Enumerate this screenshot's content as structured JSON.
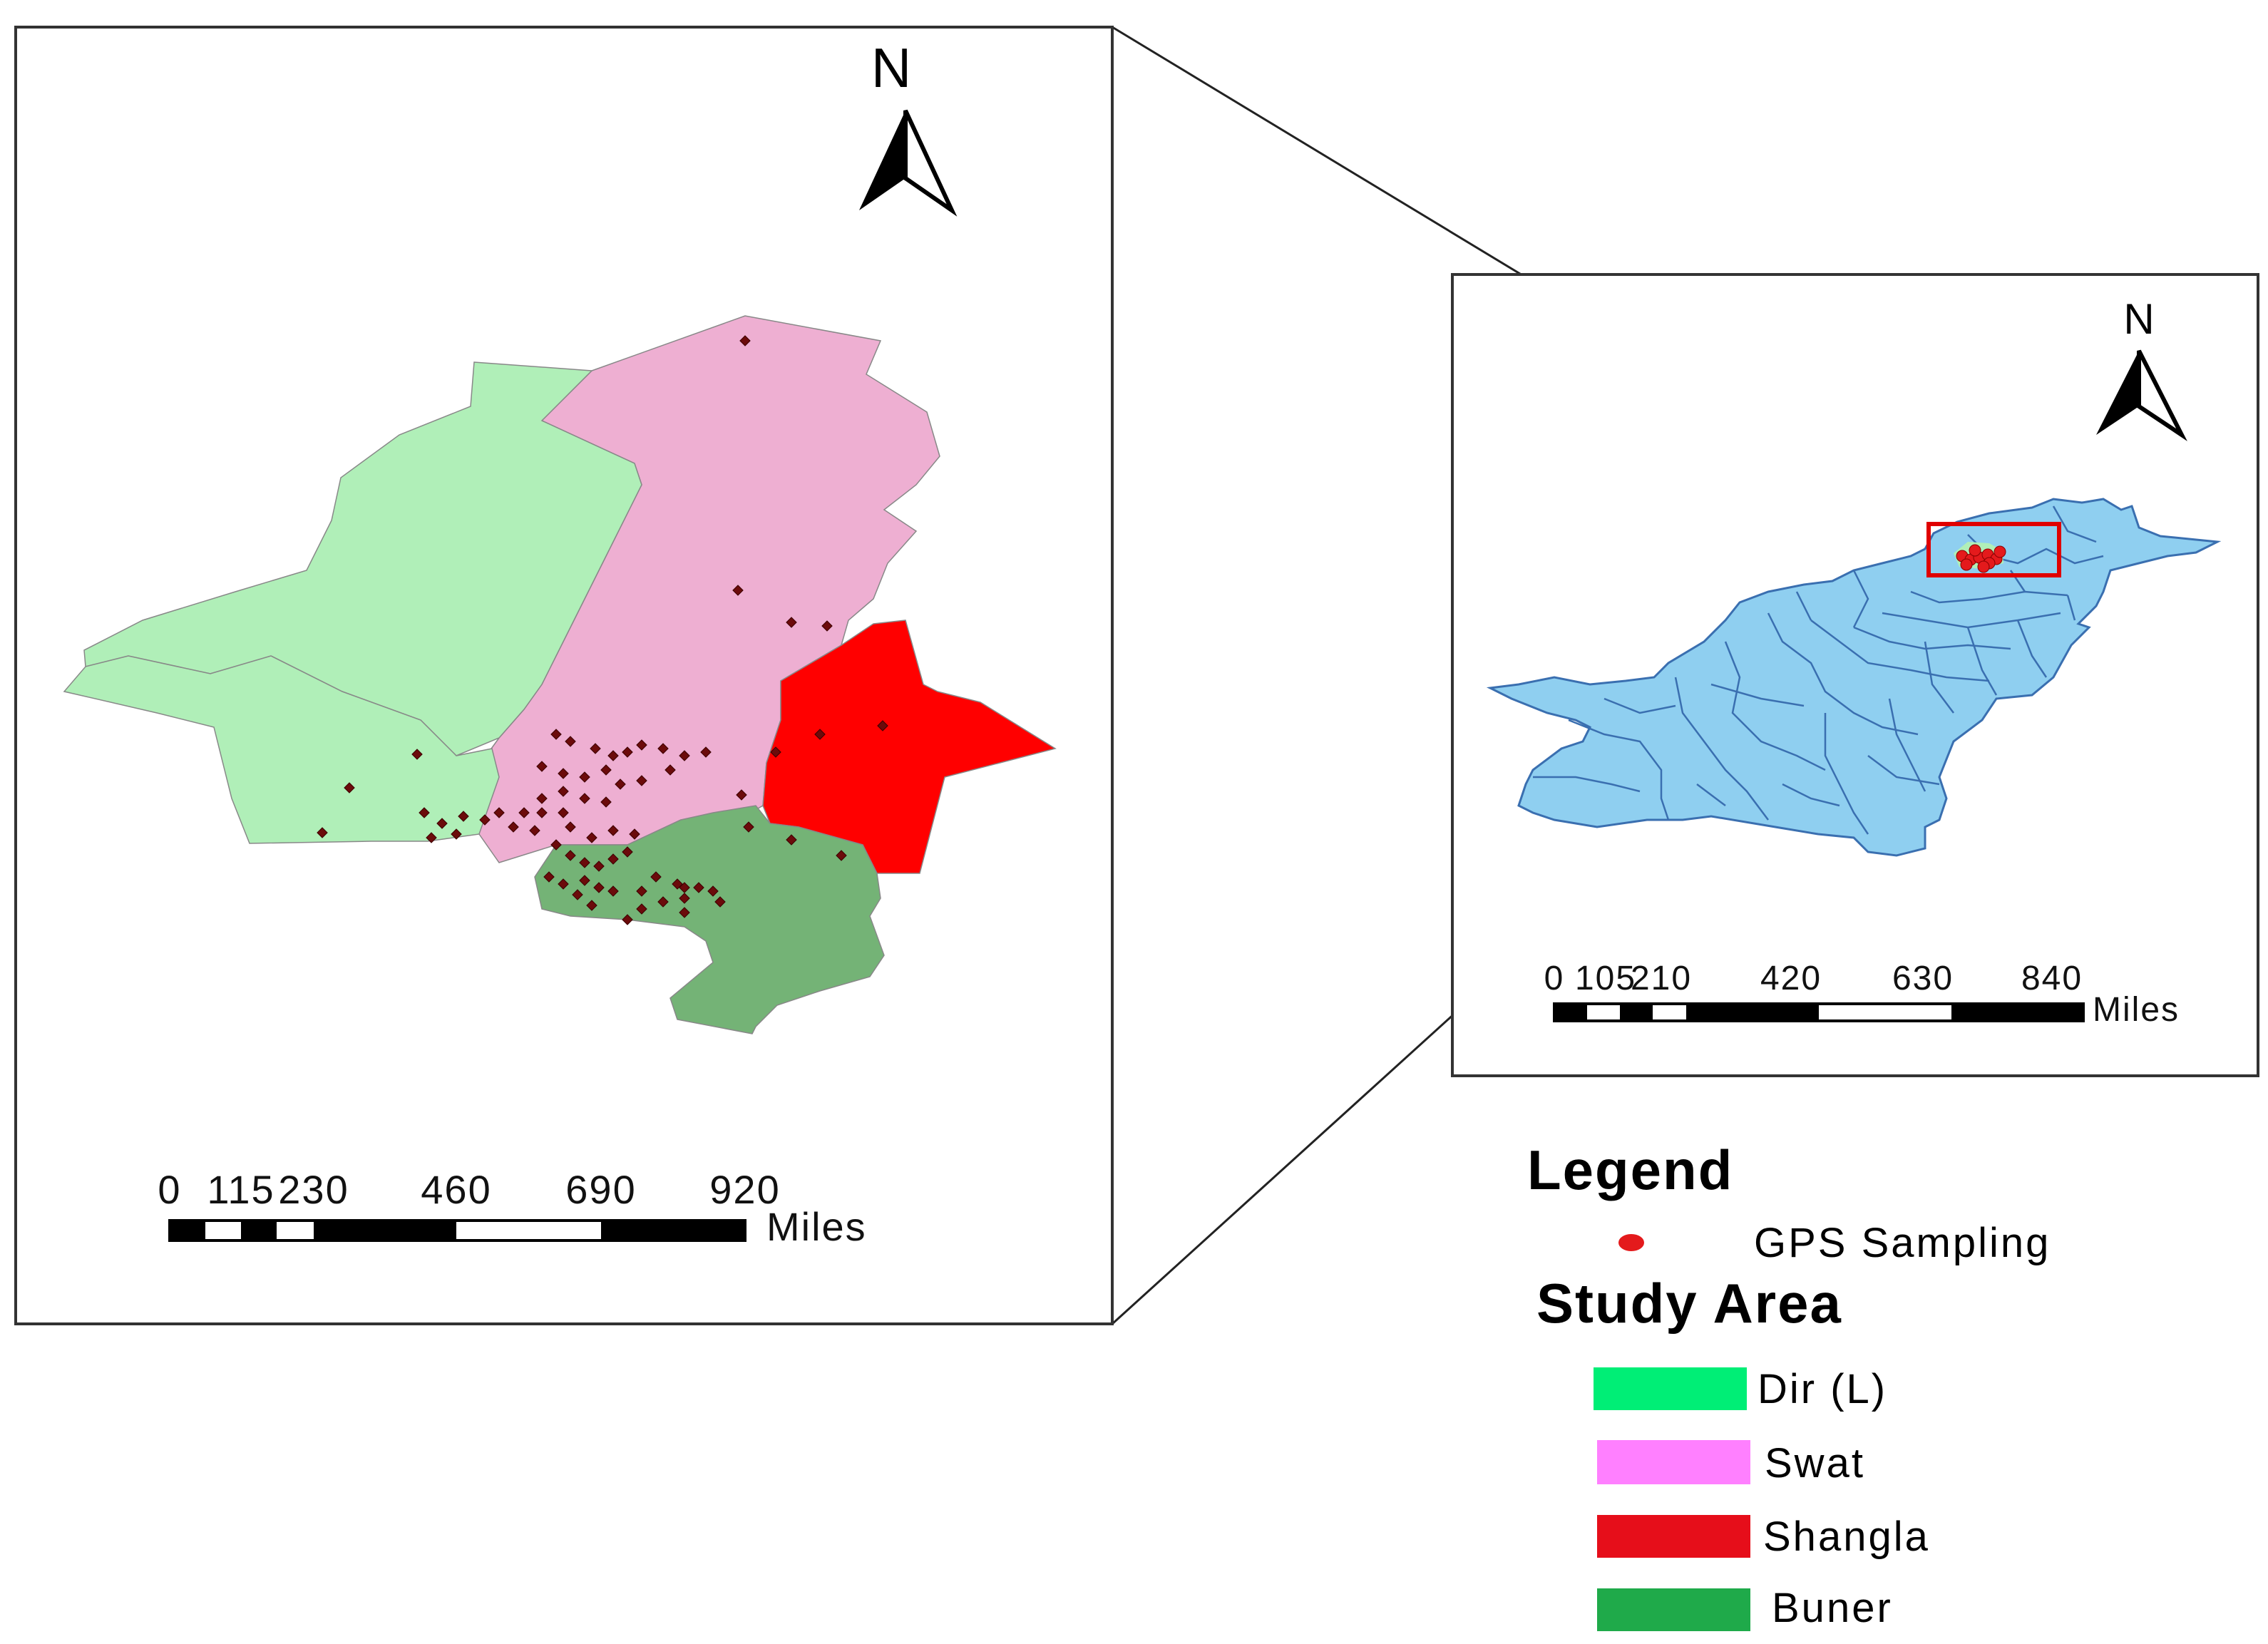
{
  "main_map": {
    "north_label": "N",
    "scale_ticks": [
      "0",
      "115",
      "230",
      "460",
      "690",
      "920"
    ],
    "scale_unit": "Miles"
  },
  "inset_map": {
    "north_label": "N",
    "scale_ticks": [
      "0",
      "105",
      "210",
      "420",
      "630",
      "840"
    ],
    "scale_unit": "Miles"
  },
  "legend": {
    "title": "Legend",
    "sampling_label": "GPS Sampling",
    "sampling_color": "#e41a1c",
    "study_area_title": "Study Area",
    "items": [
      {
        "label": "Dir (L)",
        "color": "#00ee76",
        "map_fill": "#b0efb8"
      },
      {
        "label": "Swat",
        "color": "#ff80ff",
        "map_fill": "#eeafd2"
      },
      {
        "label": "Shangla",
        "color": "#e60e1a",
        "map_fill": "#ff0000"
      },
      {
        "label": "Buner",
        "color": "#1faa4a",
        "map_fill": "#74b376"
      }
    ]
  },
  "colors": {
    "point_fill": "#6b0b0b",
    "pakistan_fill": "#8fcff0",
    "pakistan_border": "#3a6fb0",
    "highlight_box": "#e00000"
  }
}
